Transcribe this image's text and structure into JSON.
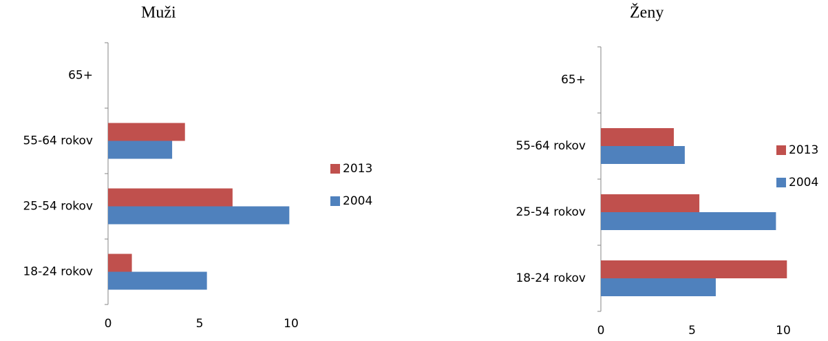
{
  "chart_data": [
    {
      "type": "bar",
      "orientation": "horizontal",
      "title": "Muži",
      "categories": [
        "18-24 rokov",
        "25-54 rokov",
        "55-64 rokov",
        "65+"
      ],
      "series": [
        {
          "name": "2013",
          "color": "#c0504d",
          "values": [
            1.3,
            6.8,
            4.2,
            null
          ]
        },
        {
          "name": "2004",
          "color": "#4f81bd",
          "values": [
            5.4,
            9.9,
            3.5,
            null
          ]
        }
      ],
      "xlim": [
        0,
        10
      ],
      "xticks": [
        0,
        5,
        10
      ],
      "legend": "right"
    },
    {
      "type": "bar",
      "orientation": "horizontal",
      "title": "Ženy",
      "categories": [
        "18-24 rokov",
        "25-54 rokov",
        "55-64 rokov",
        "65+"
      ],
      "series": [
        {
          "name": "2013",
          "color": "#c0504d",
          "values": [
            10.2,
            5.4,
            4.0,
            null
          ]
        },
        {
          "name": "2004",
          "color": "#4f81bd",
          "values": [
            6.3,
            9.6,
            4.6,
            null
          ]
        }
      ],
      "xlim": [
        0,
        10
      ],
      "xticks": [
        0,
        5,
        10
      ],
      "legend": "right"
    }
  ]
}
